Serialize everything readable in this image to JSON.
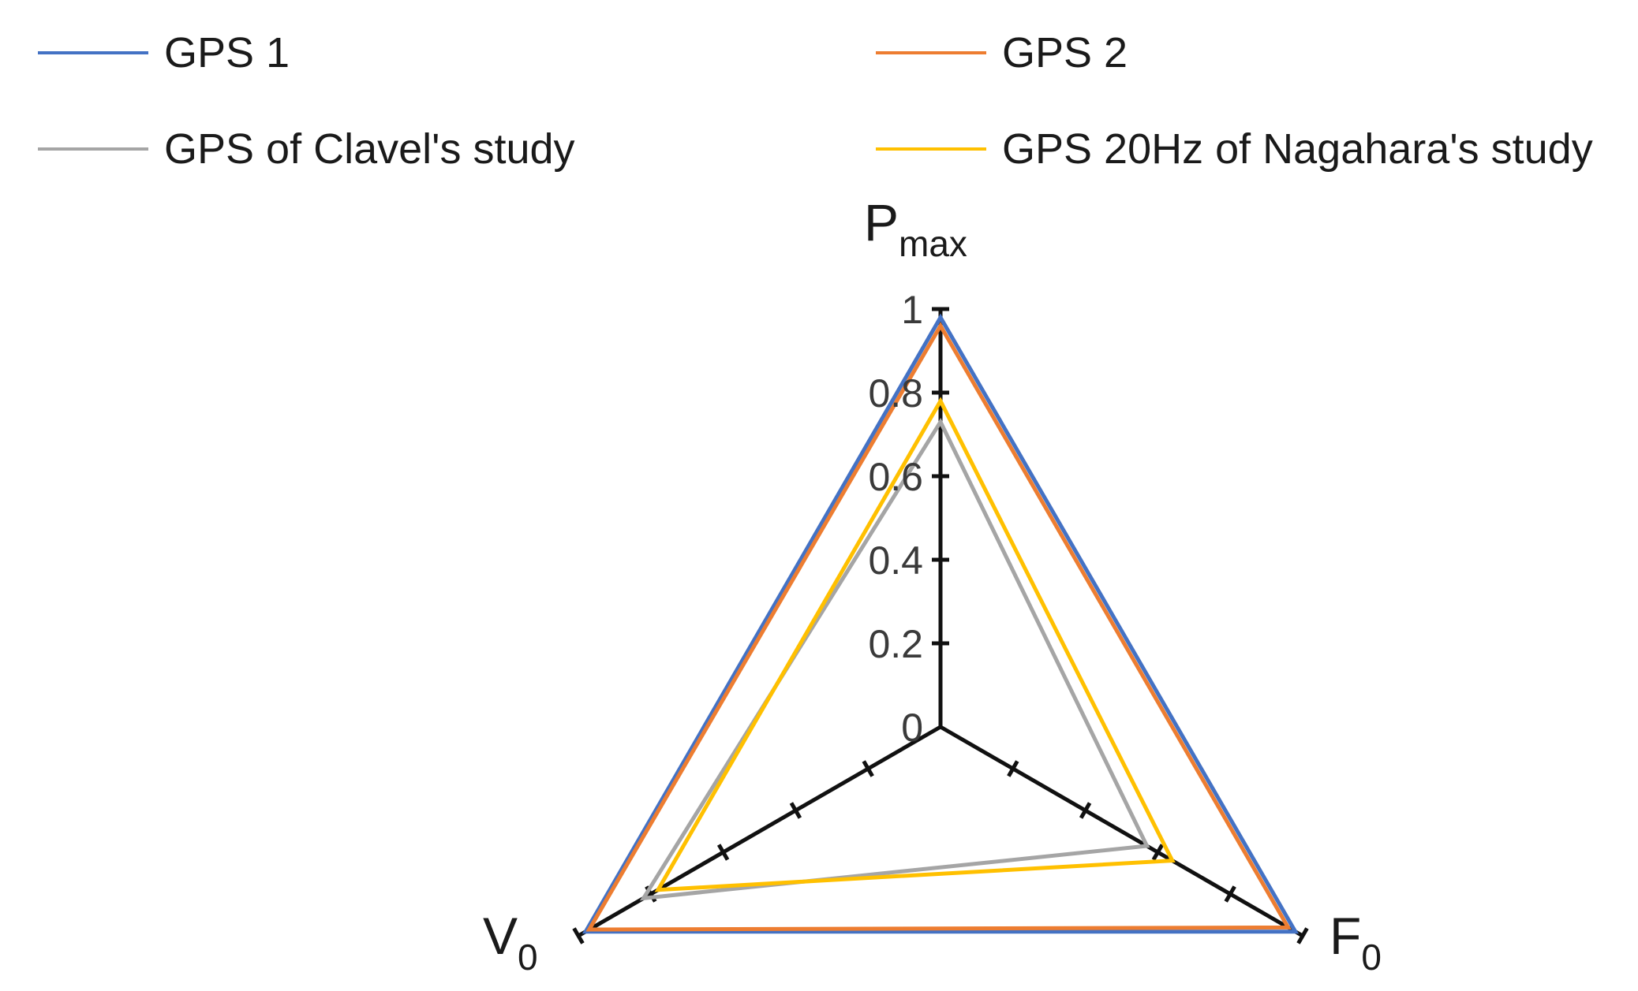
{
  "chart_data": {
    "type": "radar",
    "axes": [
      {
        "label": "P",
        "subscript": "max"
      },
      {
        "label": "F",
        "subscript": "0"
      },
      {
        "label": "V",
        "subscript": "0"
      }
    ],
    "rlim": [
      0,
      1
    ],
    "ticks": [
      "0",
      "0.2",
      "0.4",
      "0.6",
      "0.8",
      "1"
    ],
    "tick_values": [
      0,
      0.2,
      0.4,
      0.6,
      0.8,
      1
    ],
    "legend_position": "top",
    "series": [
      {
        "name": "GPS 1",
        "color": "#4472C4",
        "values": [
          0.98,
          0.98,
          0.98
        ]
      },
      {
        "name": "GPS 2",
        "color": "#ED7D31",
        "values": [
          0.96,
          0.96,
          0.97
        ]
      },
      {
        "name": "GPS of Clavel's study",
        "color": "#A5A5A5",
        "values": [
          0.73,
          0.57,
          0.82
        ]
      },
      {
        "name": "GPS 20Hz of Nagahara's study",
        "color": "#FFC000",
        "values": [
          0.78,
          0.64,
          0.78
        ]
      }
    ]
  }
}
